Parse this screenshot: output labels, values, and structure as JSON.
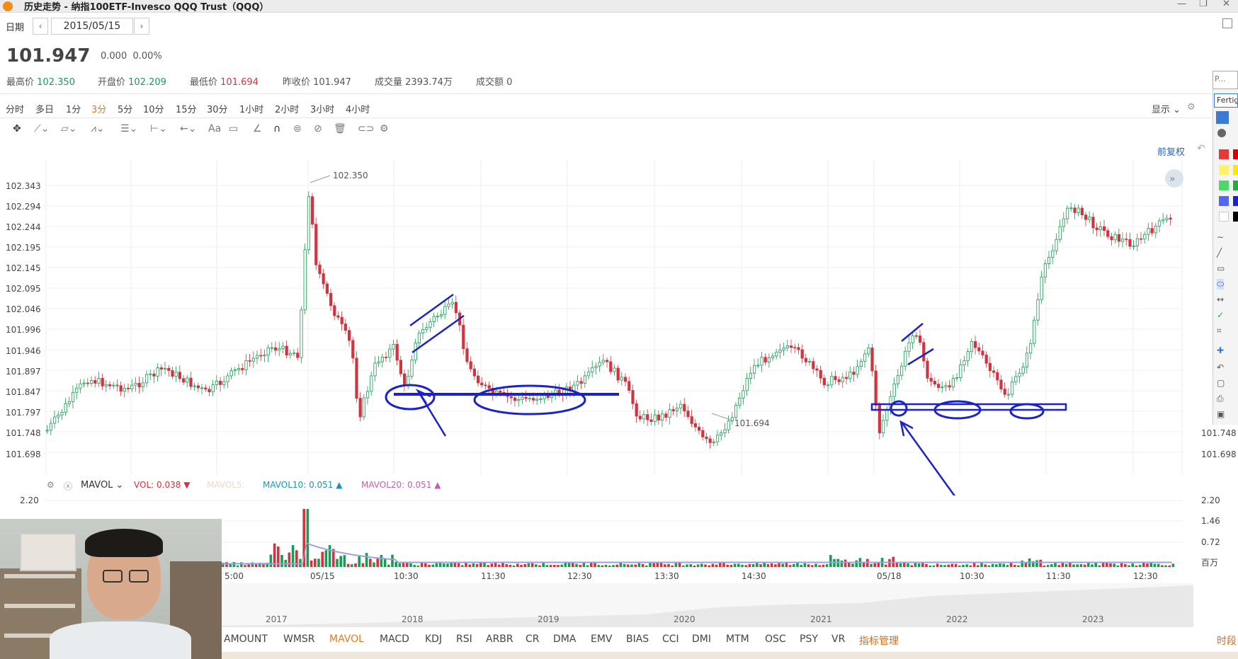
{
  "window": {
    "title": "历史走势 - 纳指100ETF-Invesco QQQ Trust（QQQ）"
  },
  "date_bar": {
    "label": "日期",
    "date": "2015/05/15",
    "prev": "‹",
    "next": "›"
  },
  "quote": {
    "price": "101.947",
    "change": "0.000",
    "change_pct": "0.00%",
    "stats": [
      {
        "label": "最高价",
        "value": "102.350",
        "color": "green"
      },
      {
        "label": "开盘价",
        "value": "102.209",
        "color": "green"
      },
      {
        "label": "最低价",
        "value": "101.694",
        "color": "red"
      },
      {
        "label": "昨收价",
        "value": "101.947",
        "color": "gray"
      },
      {
        "label": "成交量",
        "value": "2393.74万",
        "color": "gray"
      },
      {
        "label": "成交额",
        "value": "0",
        "color": "gray"
      }
    ]
  },
  "periods": [
    "分时",
    "多日",
    "1分",
    "3分",
    "5分",
    "10分",
    "15分",
    "30分",
    "1小时",
    "2小时",
    "3小时",
    "4小时"
  ],
  "active_period": "3分",
  "display_label": "显示",
  "adjust_label": "前复权",
  "drawing_tools": [
    "move-icon",
    "trendline-icon",
    "channel-icon",
    "wave-icon",
    "fib-icon",
    "measure-icon",
    "arrow-icon",
    "text-icon",
    "note-icon",
    "eraser-icon",
    "magnet-icon",
    "lock-icon",
    "hide-icon",
    "delete-icon",
    "link-icon",
    "settings-icon"
  ],
  "main_chart": {
    "y_labels": [
      "102.343",
      "102.294",
      "102.244",
      "102.195",
      "102.145",
      "102.095",
      "102.046",
      "101.996",
      "101.946",
      "101.897",
      "101.847",
      "101.797",
      "101.748",
      "101.698"
    ],
    "y_right_labels": [
      "101.748",
      "101.698"
    ],
    "high_marker": "102.350",
    "low_marker": "101.694",
    "expand": "»"
  },
  "volume": {
    "indicator": "MAVOL",
    "legend": [
      {
        "label": "VOL:",
        "value": "0.038",
        "arrow": "▼",
        "color": "#d0343f"
      },
      {
        "label": "MAVOL5:",
        "value": "",
        "arrow": "",
        "color": "#f0d8c8"
      },
      {
        "label": "MAVOL10:",
        "value": "0.051",
        "arrow": "▲",
        "color": "#1e90b8"
      },
      {
        "label": "MAVOL20:",
        "value": "0.051",
        "arrow": "▲",
        "color": "#c060b0"
      }
    ],
    "y_left": [
      "2.20"
    ],
    "y_right": [
      "2.20",
      "1.46",
      "0.72",
      "百万"
    ]
  },
  "x_labels": [
    "5:00",
    "05/15",
    "10:30",
    "11:30",
    "12:30",
    "13:30",
    "14:30",
    "05/18",
    "10:30",
    "11:30",
    "12:30"
  ],
  "year_labels": [
    "2017",
    "2018",
    "2019",
    "2020",
    "2021",
    "2022",
    "2023"
  ],
  "indicators": [
    "AMOUNT",
    "WMSR",
    "MAVOL",
    "MACD",
    "KDJ",
    "RSI",
    "ARBR",
    "CR",
    "DMA",
    "EMV",
    "BIAS",
    "CCI",
    "DMI",
    "MTM",
    "OSC",
    "PSY",
    "VR",
    "指标管理"
  ],
  "active_indicator": "MAVOL",
  "corner_label": "时段",
  "palette": {
    "title": "P...",
    "font": "Fertig"
  },
  "colors": {
    "up": "#1a9a54",
    "down": "#d0343f",
    "annotation": "#1a22c8",
    "accent": "#e07b1e"
  }
}
